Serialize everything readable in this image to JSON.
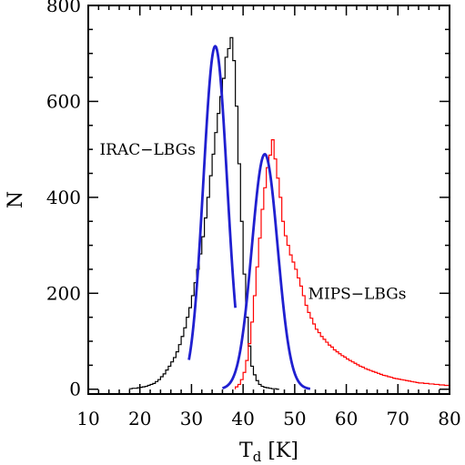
{
  "chart_data": {
    "type": "histogram",
    "xlabel_main": "T",
    "xlabel_sub": "d",
    "xlabel_unit": " [K]",
    "ylabel": "N",
    "xlim": [
      10,
      80
    ],
    "ylim": [
      -10,
      800
    ],
    "xticks": [
      10,
      20,
      30,
      40,
      50,
      60,
      70,
      80
    ],
    "yticks": [
      0,
      200,
      400,
      600,
      800
    ],
    "xtick_labels": [
      "10",
      "20",
      "30",
      "40",
      "50",
      "60",
      "70",
      "80"
    ],
    "ytick_labels": [
      "0",
      "200",
      "400",
      "600",
      "800"
    ],
    "annotations": [
      {
        "text": "IRAC−LBGs",
        "series": "irac"
      },
      {
        "text": "MIPS−LBGs",
        "series": "mips"
      }
    ],
    "series": [
      {
        "key": "irac",
        "color": "#000000",
        "bin_width": 0.5,
        "x_start": 18.0,
        "values": [
          1,
          2,
          2,
          3,
          4,
          5,
          6,
          8,
          10,
          12,
          16,
          20,
          26,
          32,
          40,
          48,
          57,
          66,
          78,
          93,
          110,
          128,
          150,
          170,
          195,
          222,
          250,
          282,
          318,
          357,
          400,
          445,
          490,
          535,
          575,
          610,
          648,
          692,
          710,
          733,
          685,
          590,
          470,
          350,
          240,
          150,
          90,
          48,
          30,
          18,
          10,
          6,
          4,
          3,
          2,
          1,
          1,
          0
        ]
      },
      {
        "key": "mips",
        "color": "#ff0000",
        "bin_width": 0.5,
        "x_start": 38.5,
        "values": [
          5,
          10,
          20,
          35,
          60,
          95,
          140,
          195,
          255,
          315,
          375,
          420,
          462,
          488,
          520,
          480,
          440,
          400,
          350,
          320,
          300,
          280,
          265,
          250,
          232,
          215,
          195,
          175,
          160,
          148,
          136,
          125,
          118,
          110,
          104,
          98,
          92,
          88,
          82,
          78,
          74,
          70,
          67,
          63,
          60,
          57,
          54,
          51,
          48,
          46,
          43,
          41,
          39,
          37,
          35,
          33,
          31,
          29,
          28,
          26,
          25,
          23,
          22,
          21,
          20,
          19,
          18,
          17,
          16,
          15,
          14,
          13,
          13,
          12,
          12,
          11,
          11,
          10,
          10,
          9,
          9,
          8,
          8
        ]
      },
      {
        "key": "irac_fit",
        "color": "#2020d0",
        "type": "gaussian",
        "amplitude": 715,
        "mean": 34.6,
        "sigma": 2.3,
        "x_range": [
          29.5,
          38.5
        ]
      },
      {
        "key": "mips_fit",
        "color": "#2020d0",
        "type": "gaussian",
        "amplitude": 490,
        "mean": 44.2,
        "sigma": 2.5,
        "x_range": [
          36.0,
          53.0
        ]
      }
    ]
  }
}
